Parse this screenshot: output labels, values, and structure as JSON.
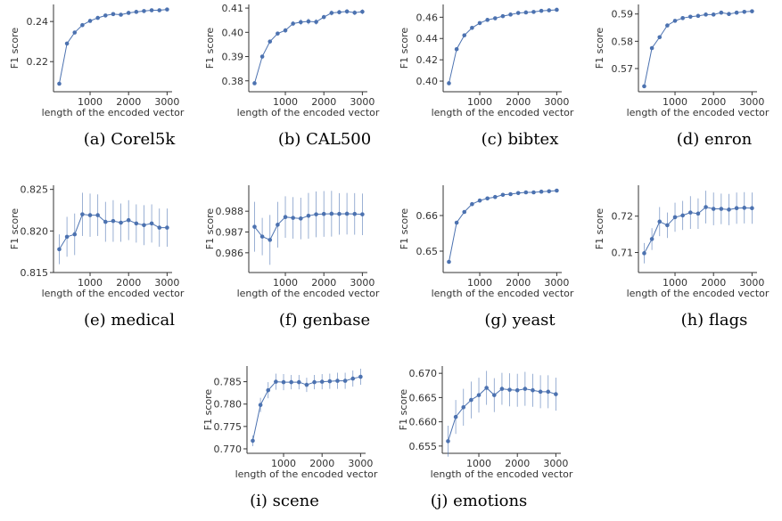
{
  "style": {
    "line_color": "#4c72b0",
    "axis_color": "#333333"
  },
  "chart_data": [
    {
      "type": "line",
      "caption": "(a) Corel5k",
      "xlabel": "length of the encoded vector",
      "ylabel": "F1 score",
      "xlim": [
        50,
        3130
      ],
      "ylim": [
        0.205,
        0.2485
      ],
      "xticks": [
        1000,
        2000,
        3000
      ],
      "xtick_labels": [
        "1000",
        "2000",
        "3000"
      ],
      "yticks": [
        0.22,
        0.24
      ],
      "ytick_labels": [
        "0.22",
        "0.24"
      ],
      "x": [
        200,
        400,
        600,
        800,
        1000,
        1200,
        1400,
        1600,
        1800,
        2000,
        2200,
        2400,
        2600,
        2800,
        3000
      ],
      "y": [
        0.209,
        0.229,
        0.2345,
        0.2382,
        0.2403,
        0.2418,
        0.243,
        0.2437,
        0.2434,
        0.2443,
        0.2448,
        0.2452,
        0.2456,
        0.2456,
        0.246
      ],
      "err": [
        0.0003,
        0.0003,
        0.0003,
        0.0003,
        0.0003,
        0.0003,
        0.0003,
        0.0003,
        0.0003,
        0.0003,
        0.0003,
        0.0003,
        0.0003,
        0.0003,
        0.0003
      ]
    },
    {
      "type": "line",
      "caption": "(b) CAL500",
      "xlabel": "length of the encoded vector",
      "ylabel": "F1 score",
      "xlim": [
        50,
        3130
      ],
      "ylim": [
        0.3755,
        0.4115
      ],
      "xticks": [
        1000,
        2000,
        3000
      ],
      "xtick_labels": [
        "1000",
        "2000",
        "3000"
      ],
      "yticks": [
        0.38,
        0.39,
        0.4,
        0.41
      ],
      "ytick_labels": [
        "0.38",
        "0.39",
        "0.40",
        "0.41"
      ],
      "x": [
        200,
        400,
        600,
        800,
        1000,
        1200,
        1400,
        1600,
        1800,
        2000,
        2200,
        2400,
        2600,
        2800,
        3000
      ],
      "y": [
        0.379,
        0.39,
        0.3962,
        0.3995,
        0.4008,
        0.4036,
        0.4042,
        0.4045,
        0.4043,
        0.4063,
        0.408,
        0.4083,
        0.4086,
        0.4081,
        0.4085
      ],
      "err": [
        0.0006,
        0.0008,
        0.0007,
        0.0008,
        0.001,
        0.001,
        0.0012,
        0.0012,
        0.0011,
        0.0009,
        0.001,
        0.0009,
        0.001,
        0.001,
        0.001
      ]
    },
    {
      "type": "line",
      "caption": "(c) bibtex",
      "xlabel": "length of the encoded vector",
      "ylabel": "F1 score",
      "xlim": [
        50,
        3130
      ],
      "ylim": [
        0.39,
        0.472
      ],
      "xticks": [
        1000,
        2000,
        3000
      ],
      "xtick_labels": [
        "1000",
        "2000",
        "3000"
      ],
      "yticks": [
        0.4,
        0.42,
        0.44,
        0.46
      ],
      "ytick_labels": [
        "0.40",
        "0.42",
        "0.44",
        "0.46"
      ],
      "x": [
        200,
        400,
        600,
        800,
        1000,
        1200,
        1400,
        1600,
        1800,
        2000,
        2200,
        2400,
        2600,
        2800,
        3000
      ],
      "y": [
        0.398,
        0.43,
        0.443,
        0.45,
        0.4545,
        0.4575,
        0.459,
        0.461,
        0.4625,
        0.464,
        0.4645,
        0.465,
        0.466,
        0.4665,
        0.467
      ],
      "err": [
        0.0004,
        0.0004,
        0.0004,
        0.0004,
        0.0004,
        0.0004,
        0.0004,
        0.0004,
        0.0004,
        0.0004,
        0.0004,
        0.0004,
        0.0004,
        0.0004,
        0.0004
      ]
    },
    {
      "type": "line",
      "caption": "(d) enron",
      "xlabel": "length of the encoded vector",
      "ylabel": "F1 score",
      "xlim": [
        50,
        3130
      ],
      "ylim": [
        0.5615,
        0.5935
      ],
      "xticks": [
        1000,
        2000,
        3000
      ],
      "xtick_labels": [
        "1000",
        "2000",
        "3000"
      ],
      "yticks": [
        0.57,
        0.58,
        0.59
      ],
      "ytick_labels": [
        "0.57",
        "0.58",
        "0.59"
      ],
      "x": [
        200,
        400,
        600,
        800,
        1000,
        1200,
        1400,
        1600,
        1800,
        2000,
        2200,
        2400,
        2600,
        2800,
        3000
      ],
      "y": [
        0.5635,
        0.5775,
        0.5815,
        0.5858,
        0.5875,
        0.5885,
        0.589,
        0.5893,
        0.5898,
        0.5898,
        0.5905,
        0.59,
        0.5905,
        0.5908,
        0.591
      ],
      "err": [
        0.0005,
        0.0006,
        0.0006,
        0.0005,
        0.0006,
        0.0006,
        0.0006,
        0.0006,
        0.0006,
        0.0006,
        0.0006,
        0.0006,
        0.0006,
        0.0006,
        0.0006
      ]
    },
    {
      "type": "line",
      "caption": "(e) medical",
      "xlabel": "length of the encoded vector",
      "ylabel": "F1 score",
      "xlim": [
        50,
        3130
      ],
      "ylim": [
        0.815,
        0.8255
      ],
      "xticks": [
        1000,
        2000,
        3000
      ],
      "xtick_labels": [
        "1000",
        "2000",
        "3000"
      ],
      "yticks": [
        0.815,
        0.82,
        0.825
      ],
      "ytick_labels": [
        "0.815",
        "0.820",
        "0.825"
      ],
      "x": [
        200,
        400,
        600,
        800,
        1000,
        1200,
        1400,
        1600,
        1800,
        2000,
        2200,
        2400,
        2600,
        2800,
        3000
      ],
      "y": [
        0.8178,
        0.8193,
        0.8196,
        0.822,
        0.8219,
        0.8219,
        0.8211,
        0.8212,
        0.821,
        0.8213,
        0.8209,
        0.8207,
        0.8209,
        0.8204,
        0.8204
      ],
      "err": [
        0.0018,
        0.0024,
        0.0025,
        0.0026,
        0.0026,
        0.0025,
        0.0024,
        0.0025,
        0.0023,
        0.0024,
        0.0023,
        0.0024,
        0.0023,
        0.0023,
        0.0023
      ]
    },
    {
      "type": "line",
      "caption": "(f) genbase",
      "xlabel": "length of the encoded vector",
      "ylabel": "F1 score",
      "xlim": [
        50,
        3130
      ],
      "ylim": [
        0.98505,
        0.98925
      ],
      "xticks": [
        1000,
        2000,
        3000
      ],
      "xtick_labels": [
        "1000",
        "2000",
        "3000"
      ],
      "yticks": [
        0.986,
        0.987,
        0.988
      ],
      "ytick_labels": [
        "0.986",
        "0.987",
        "0.988"
      ],
      "x": [
        200,
        400,
        600,
        800,
        1000,
        1200,
        1400,
        1600,
        1800,
        2000,
        2200,
        2400,
        2600,
        2800,
        3000
      ],
      "y": [
        0.98725,
        0.98678,
        0.98662,
        0.98735,
        0.98772,
        0.98768,
        0.98765,
        0.98778,
        0.98785,
        0.98787,
        0.98788,
        0.98787,
        0.98788,
        0.98787,
        0.98785
      ],
      "err": [
        0.0012,
        0.0009,
        0.0012,
        0.0011,
        0.001,
        0.001,
        0.001,
        0.0011,
        0.0011,
        0.0011,
        0.0011,
        0.001,
        0.001,
        0.001,
        0.001
      ]
    },
    {
      "type": "line",
      "caption": "(g) yeast",
      "xlabel": "length of the encoded vector",
      "ylabel": "F1 score",
      "xlim": [
        50,
        3130
      ],
      "ylim": [
        0.644,
        0.6685
      ],
      "xticks": [
        1000,
        2000,
        3000
      ],
      "xtick_labels": [
        "1000",
        "2000",
        "3000"
      ],
      "yticks": [
        0.65,
        0.66
      ],
      "ytick_labels": [
        "0.65",
        "0.66"
      ],
      "x": [
        200,
        400,
        600,
        800,
        1000,
        1200,
        1400,
        1600,
        1800,
        2000,
        2200,
        2400,
        2600,
        2800,
        3000
      ],
      "y": [
        0.647,
        0.658,
        0.661,
        0.6632,
        0.6642,
        0.6648,
        0.6652,
        0.6658,
        0.666,
        0.6663,
        0.6665,
        0.6665,
        0.6667,
        0.6668,
        0.667
      ],
      "err": [
        0.0004,
        0.0004,
        0.0004,
        0.0004,
        0.0004,
        0.0004,
        0.0004,
        0.0004,
        0.0004,
        0.0004,
        0.0004,
        0.0004,
        0.0004,
        0.0004,
        0.0004
      ]
    },
    {
      "type": "line",
      "caption": "(h) flags",
      "xlabel": "length of the encoded vector",
      "ylabel": "F1 score",
      "xlim": [
        50,
        3130
      ],
      "ylim": [
        0.7045,
        0.7285
      ],
      "xticks": [
        1000,
        2000,
        3000
      ],
      "xtick_labels": [
        "1000",
        "2000",
        "3000"
      ],
      "yticks": [
        0.71,
        0.72
      ],
      "ytick_labels": [
        "0.71",
        "0.72"
      ],
      "x": [
        200,
        400,
        600,
        800,
        1000,
        1200,
        1400,
        1600,
        1800,
        2000,
        2200,
        2400,
        2600,
        2800,
        3000
      ],
      "y": [
        0.7098,
        0.7137,
        0.7185,
        0.7175,
        0.7197,
        0.7202,
        0.721,
        0.7207,
        0.7225,
        0.722,
        0.722,
        0.7218,
        0.7222,
        0.7223,
        0.7222
      ],
      "err": [
        0.0028,
        0.003,
        0.004,
        0.0035,
        0.004,
        0.004,
        0.0045,
        0.0042,
        0.0045,
        0.0045,
        0.0042,
        0.0043,
        0.0043,
        0.0043,
        0.0043
      ]
    },
    {
      "type": "line",
      "caption": "(i) scene",
      "xlabel": "length of the encoded vector",
      "ylabel": "F1 score",
      "xlim": [
        50,
        3130
      ],
      "ylim": [
        0.769,
        0.7885
      ],
      "xticks": [
        1000,
        2000,
        3000
      ],
      "xtick_labels": [
        "1000",
        "2000",
        "3000"
      ],
      "yticks": [
        0.77,
        0.775,
        0.78,
        0.785
      ],
      "ytick_labels": [
        "0.770",
        "0.775",
        "0.780",
        "0.785"
      ],
      "x": [
        200,
        400,
        600,
        800,
        1000,
        1200,
        1400,
        1600,
        1800,
        2000,
        2200,
        2400,
        2600,
        2800,
        3000
      ],
      "y": [
        0.7718,
        0.7798,
        0.7831,
        0.785,
        0.7849,
        0.7849,
        0.7849,
        0.7843,
        0.7849,
        0.785,
        0.7851,
        0.7852,
        0.7852,
        0.7857,
        0.7861
      ],
      "err": [
        0.0012,
        0.0016,
        0.0018,
        0.0018,
        0.0018,
        0.0016,
        0.0016,
        0.0016,
        0.0016,
        0.0017,
        0.0017,
        0.0018,
        0.0018,
        0.0018,
        0.0018
      ]
    },
    {
      "type": "line",
      "caption": "(j) emotions",
      "xlabel": "length of the encoded vector",
      "ylabel": "F1 score",
      "xlim": [
        50,
        3130
      ],
      "ylim": [
        0.6535,
        0.6715
      ],
      "xticks": [
        1000,
        2000,
        3000
      ],
      "xtick_labels": [
        "1000",
        "2000",
        "3000"
      ],
      "yticks": [
        0.655,
        0.66,
        0.665,
        0.67
      ],
      "ytick_labels": [
        "0.655",
        "0.660",
        "0.665",
        "0.670"
      ],
      "x": [
        200,
        400,
        600,
        800,
        1000,
        1200,
        1400,
        1600,
        1800,
        2000,
        2200,
        2400,
        2600,
        2800,
        3000
      ],
      "y": [
        0.656,
        0.661,
        0.663,
        0.6645,
        0.6655,
        0.667,
        0.6655,
        0.6668,
        0.6666,
        0.6665,
        0.6668,
        0.6665,
        0.6662,
        0.6662,
        0.6657
      ],
      "err": [
        0.0032,
        0.0035,
        0.0038,
        0.0038,
        0.0036,
        0.0035,
        0.0035,
        0.0033,
        0.0034,
        0.0034,
        0.0035,
        0.0034,
        0.0034,
        0.0034,
        0.0034
      ]
    }
  ]
}
